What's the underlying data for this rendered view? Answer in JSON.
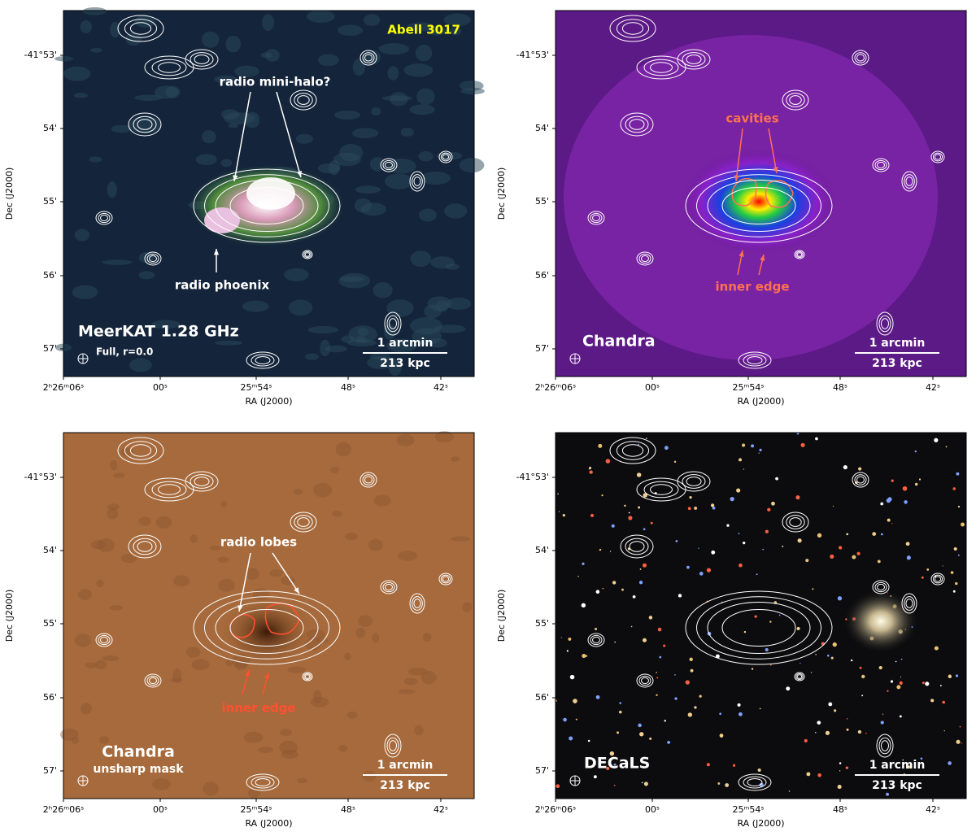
{
  "axes": {
    "x_label": "RA (J2000)",
    "y_label": "Dec (J2000)",
    "x_ticks": [
      "2ʰ26ᵐ06ˢ",
      "00ˢ",
      "25ᵐ54ˢ",
      "48ˢ",
      "42ˢ"
    ],
    "y_ticks": [
      "-41°53'",
      "54'",
      "55'",
      "56'",
      "57'"
    ]
  },
  "scale_bar": {
    "angle": "1 arcmin",
    "length": "213 kpc"
  },
  "panels": [
    {
      "cluster": "Abell 3017",
      "mini_halo": "radio mini-halo?",
      "phoenix": "radio phoenix",
      "instrument": "MeerKAT 1.28 GHz",
      "subtitle": "Full, r=0.0"
    },
    {
      "cavities": "cavities",
      "inner_edge": "inner edge",
      "instrument": "Chandra"
    },
    {
      "lobes": "radio lobes",
      "inner_edge": "inner edge",
      "instrument": "Chandra",
      "subtitle": "unsharp mask"
    },
    {
      "instrument": "DECaLS"
    }
  ]
}
